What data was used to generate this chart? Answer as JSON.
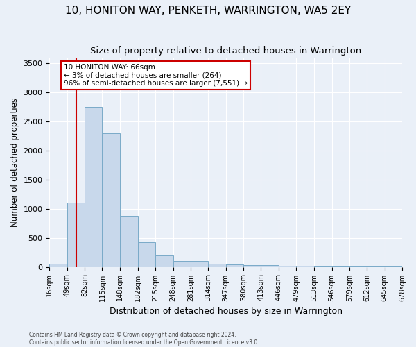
{
  "title": "10, HONITON WAY, PENKETH, WARRINGTON, WA5 2EY",
  "subtitle": "Size of property relative to detached houses in Warrington",
  "xlabel": "Distribution of detached houses by size in Warrington",
  "ylabel": "Number of detached properties",
  "bar_color": "#c8d8eb",
  "bar_edge_color": "#7aaac8",
  "annotation_line_color": "#cc0000",
  "annotation_property_sqm": 66,
  "annotation_text_line1": "10 HONITON WAY: 66sqm",
  "annotation_text_line2": "← 3% of detached houses are smaller (264)",
  "annotation_text_line3": "96% of semi-detached houses are larger (7,551) →",
  "footer_line1": "Contains HM Land Registry data © Crown copyright and database right 2024.",
  "footer_line2": "Contains public sector information licensed under the Open Government Licence v3.0.",
  "bin_edges": [
    16,
    49,
    82,
    115,
    148,
    182,
    215,
    248,
    281,
    314,
    347,
    380,
    413,
    446,
    479,
    513,
    546,
    579,
    612,
    645,
    678
  ],
  "bar_heights": [
    50,
    1100,
    2750,
    2300,
    880,
    430,
    200,
    105,
    100,
    60,
    40,
    30,
    25,
    18,
    15,
    10,
    8,
    5,
    3,
    2
  ],
  "ylim": [
    0,
    3600
  ],
  "yticks": [
    0,
    500,
    1000,
    1500,
    2000,
    2500,
    3000,
    3500
  ],
  "background_color": "#eaf0f8",
  "plot_background_color": "#eaf0f8",
  "grid_color": "#ffffff",
  "title_fontsize": 11,
  "subtitle_fontsize": 9.5,
  "tick_label_fontsize": 7,
  "ylabel_fontsize": 8.5,
  "xlabel_fontsize": 9
}
